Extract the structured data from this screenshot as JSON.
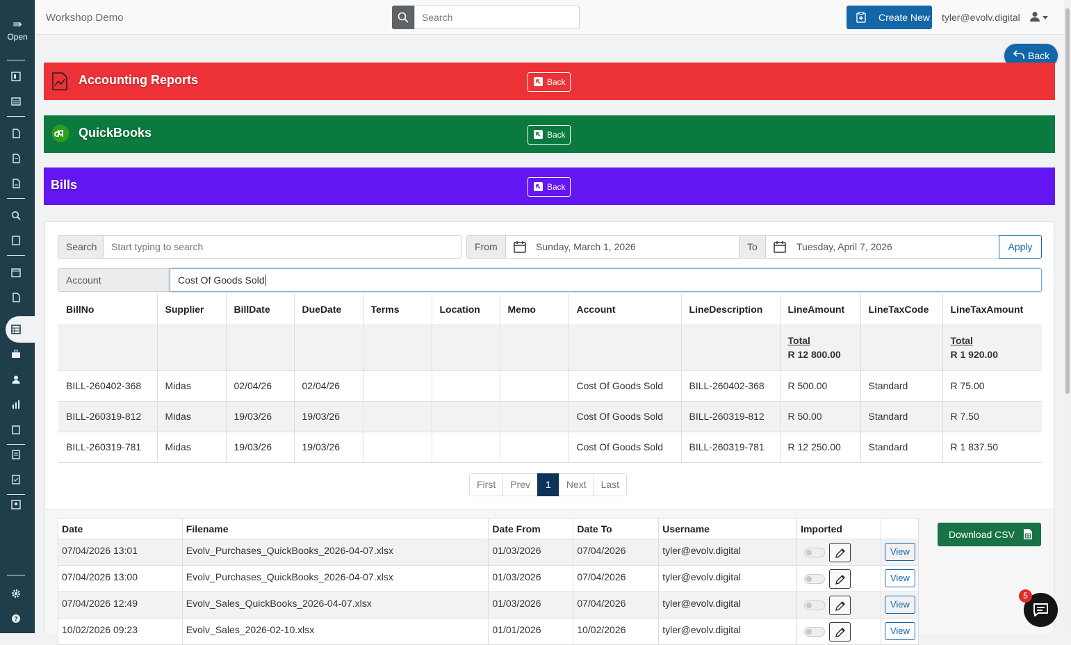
{
  "app": {
    "brand": "Workshop Demo",
    "user": "tyler@evolv.digital"
  },
  "sidebar": {
    "open_label": "Open"
  },
  "topbar": {
    "search_placeholder": "Search",
    "create_label": "Create New"
  },
  "float_back_label": "Back",
  "bands": [
    {
      "title": "Accounting Reports",
      "back": "Back",
      "color": "#ec3237"
    },
    {
      "title": "QuickBooks",
      "back": "Back",
      "color": "#0b7a3e"
    },
    {
      "title": "Bills",
      "back": "Back",
      "color": "#6315f2"
    }
  ],
  "filters": {
    "search_label": "Search",
    "search_placeholder": "Start typing to search",
    "from_label": "From",
    "from_value": "Sunday, March 1, 2026",
    "to_label": "To",
    "to_value": "Tuesday, April 7, 2026",
    "apply_label": "Apply",
    "account_label": "Account",
    "account_value": "Cost Of Goods Sold"
  },
  "bills_table": {
    "headers": [
      "BillNo",
      "Supplier",
      "BillDate",
      "DueDate",
      "Terms",
      "Location",
      "Memo",
      "Account",
      "LineDescription",
      "LineAmount",
      "LineTaxCode",
      "LineTaxAmount"
    ],
    "total_label": "Total",
    "total_line_amount": "R 12 800.00",
    "total_tax_amount": "R 1 920.00",
    "rows": [
      [
        "BILL-260402-368",
        "Midas",
        "02/04/26",
        "02/04/26",
        "",
        "",
        "",
        "Cost Of Goods Sold",
        "BILL-260402-368",
        "R 500.00",
        "Standard",
        "R 75.00"
      ],
      [
        "BILL-260319-812",
        "Midas",
        "19/03/26",
        "19/03/26",
        "",
        "",
        "",
        "Cost Of Goods Sold",
        "BILL-260319-812",
        "R 50.00",
        "Standard",
        "R 7.50"
      ],
      [
        "BILL-260319-781",
        "Midas",
        "19/03/26",
        "19/03/26",
        "",
        "",
        "",
        "Cost Of Goods Sold",
        "BILL-260319-781",
        "R 12 250.00",
        "Standard",
        "R 1 837.50"
      ]
    ]
  },
  "pager": {
    "first": "First",
    "prev": "Prev",
    "current": "1",
    "next": "Next",
    "last": "Last"
  },
  "imports_table": {
    "headers": [
      "Date",
      "Filename",
      "Date From",
      "Date To",
      "Username",
      "Imported",
      ""
    ],
    "view_label": "View",
    "rows": [
      [
        "07/04/2026 13:01",
        "Evolv_Purchases_QuickBooks_2026-04-07.xlsx",
        "01/03/2026",
        "07/04/2026",
        "tyler@evolv.digital"
      ],
      [
        "07/04/2026 13:00",
        "Evolv_Purchases_QuickBooks_2026-04-07.xlsx",
        "01/03/2026",
        "07/04/2026",
        "tyler@evolv.digital"
      ],
      [
        "07/04/2026 12:49",
        "Evolv_Sales_QuickBooks_2026-04-07.xlsx",
        "01/03/2026",
        "07/04/2026",
        "tyler@evolv.digital"
      ],
      [
        "10/02/2026 09:23",
        "Evolv_Sales_2026-02-10.xlsx",
        "01/01/2026",
        "10/02/2026",
        "tyler@evolv.digital"
      ]
    ]
  },
  "download_csv_label": "Download CSV",
  "chat": {
    "badge": "5"
  }
}
